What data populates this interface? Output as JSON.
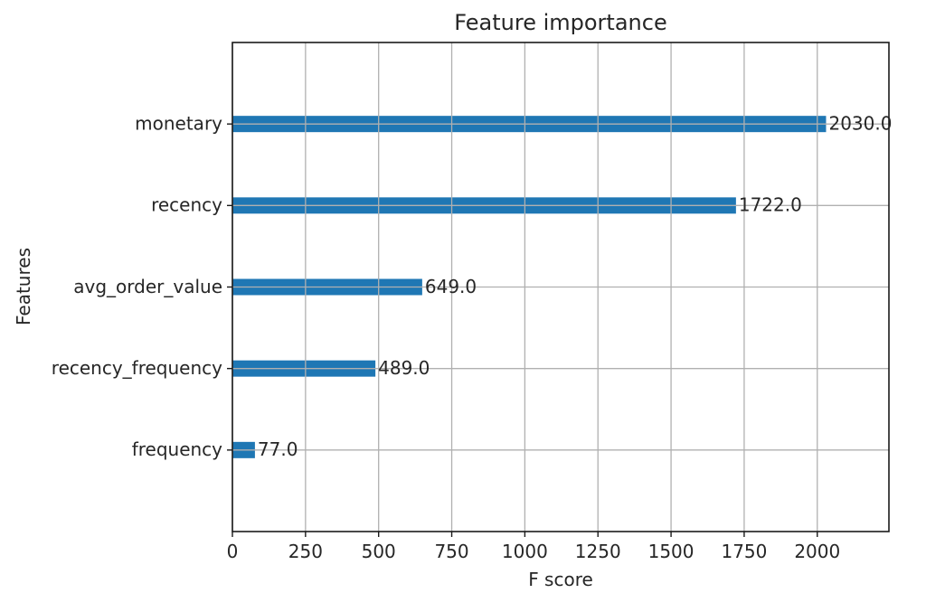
{
  "chart_data": {
    "type": "bar",
    "orientation": "horizontal",
    "title": "Feature importance",
    "xlabel": "F score",
    "ylabel": "Features",
    "categories": [
      "monetary",
      "recency",
      "avg_order_value",
      "recency_frequency",
      "frequency"
    ],
    "values": [
      2030.0,
      1722.0,
      649.0,
      489.0,
      77.0
    ],
    "value_labels": [
      "2030.0",
      "1722.0",
      "649.0",
      "489.0",
      "77.0"
    ],
    "xticks": [
      0,
      250,
      500,
      750,
      1000,
      1250,
      1500,
      1750,
      2000
    ],
    "xtick_labels": [
      "0",
      "250",
      "500",
      "750",
      "1000",
      "1250",
      "1500",
      "1750",
      "2000"
    ],
    "xlim": [
      0,
      2245
    ],
    "grid": true,
    "grid_above_bars": true,
    "legend": "none",
    "colors": {
      "bar": "#1f77b4",
      "grid": "#b0b0b0",
      "spine": "#1a1a1a",
      "tick": "#1a1a1a",
      "text": "#262626",
      "background": "#ffffff"
    }
  }
}
